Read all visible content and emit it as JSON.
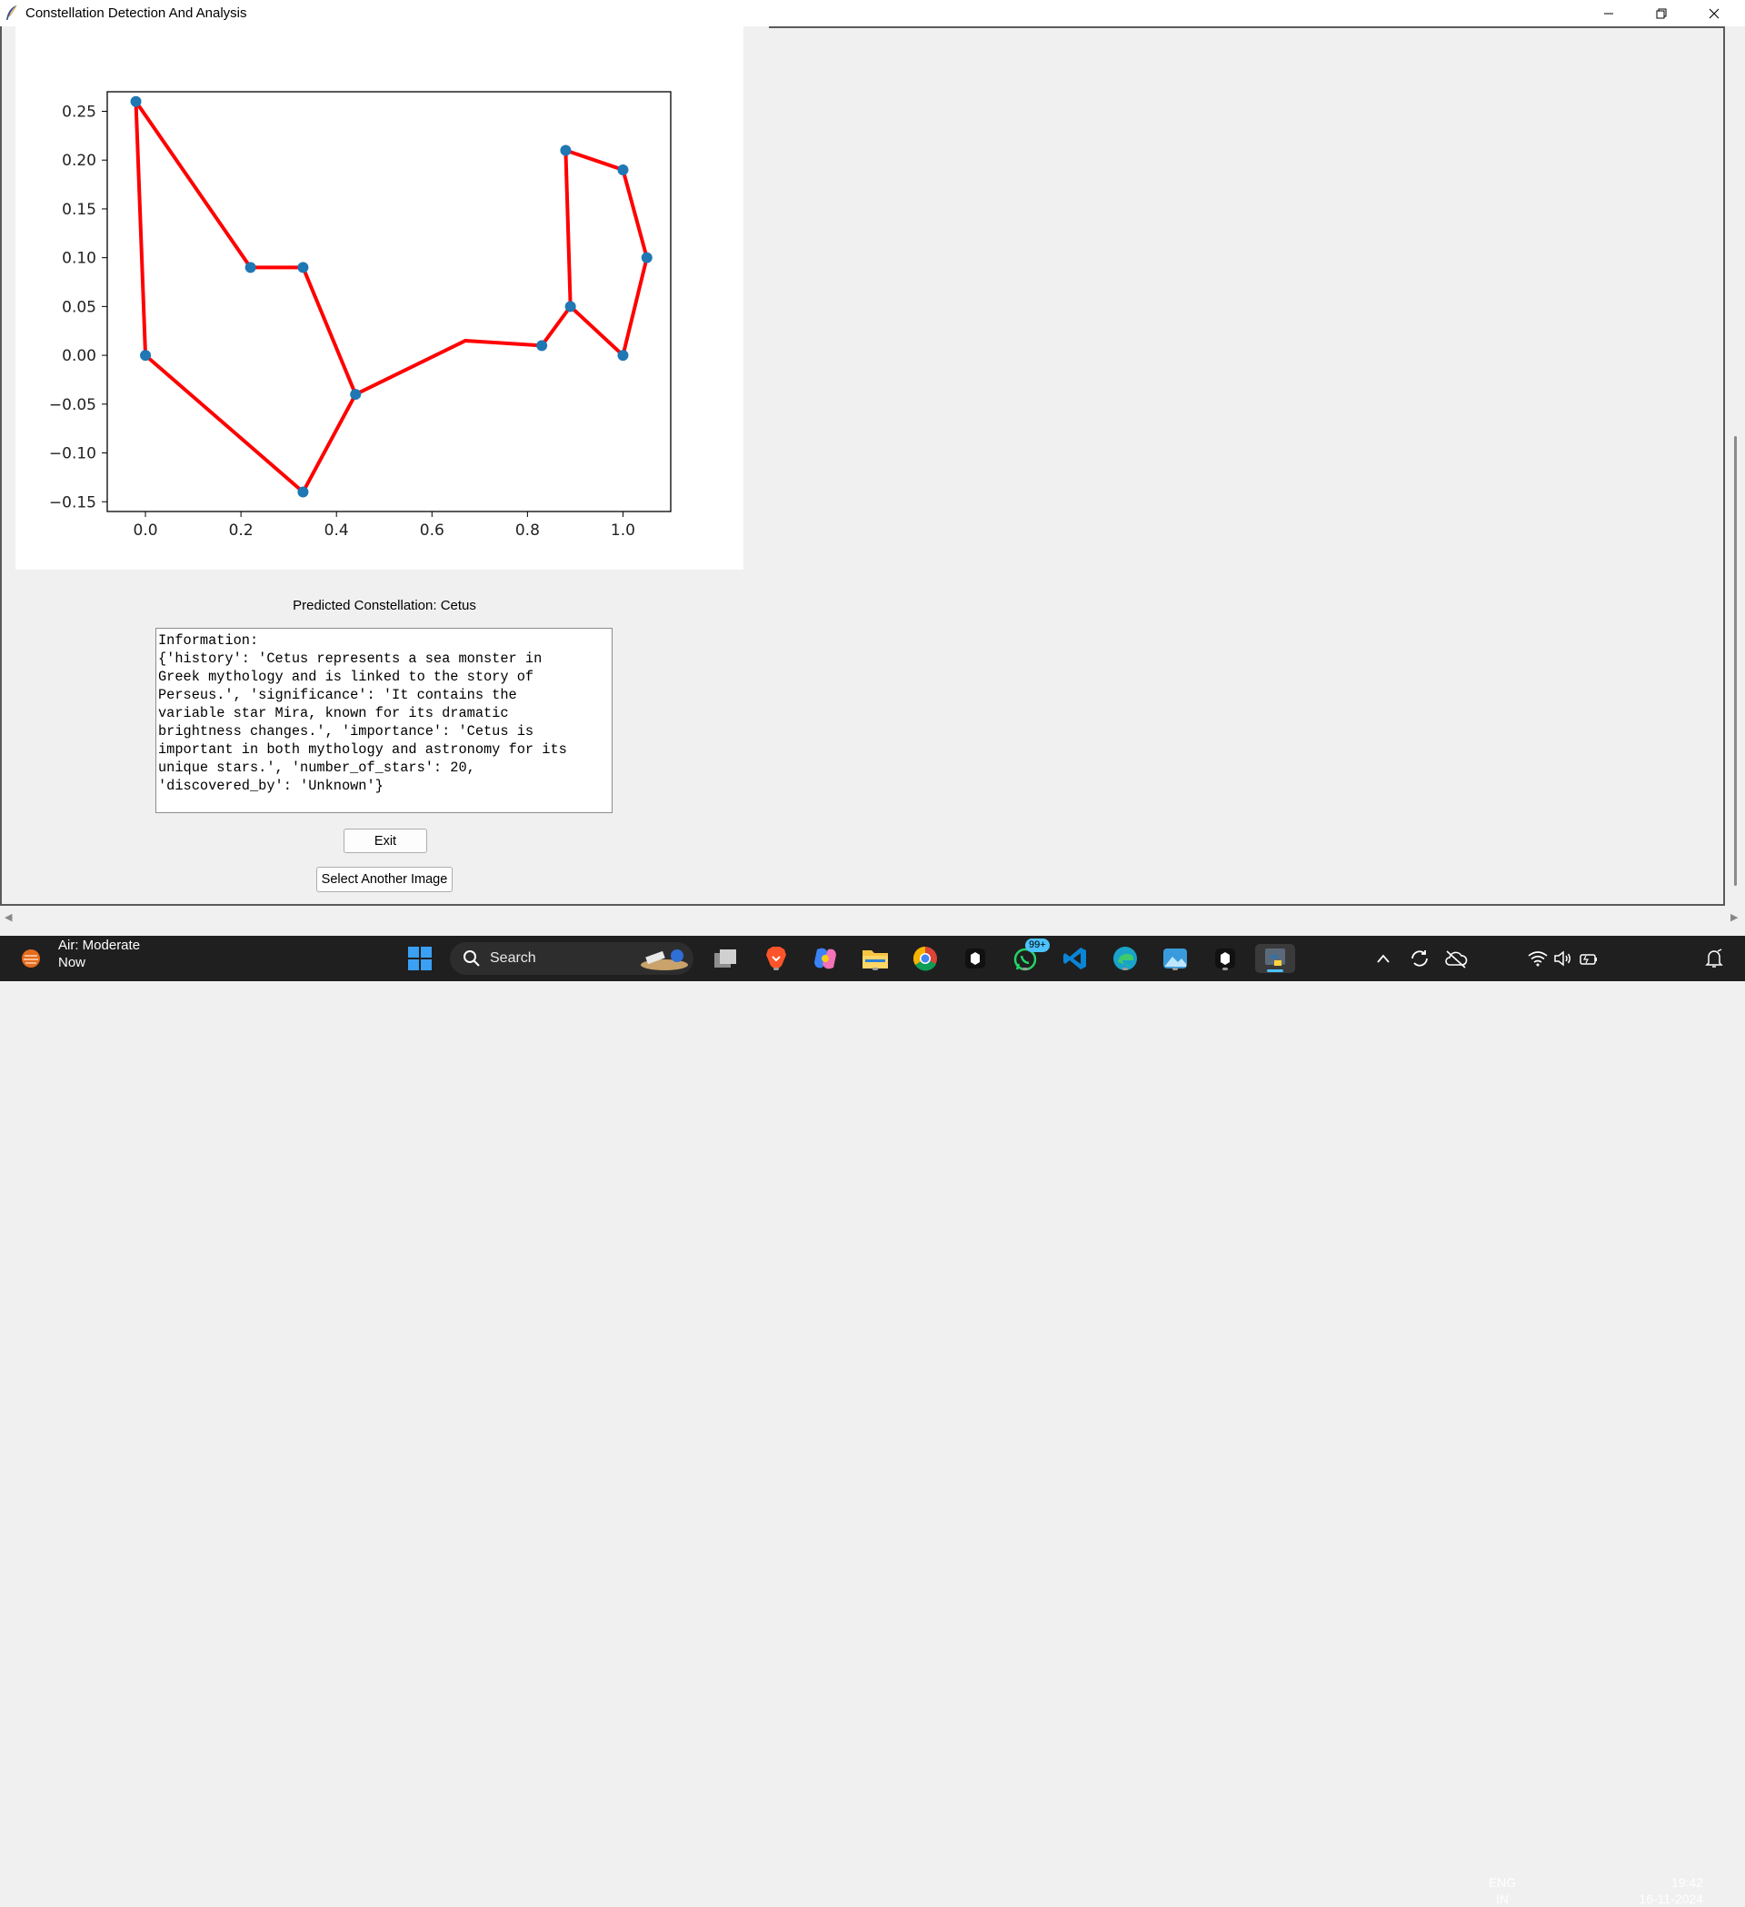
{
  "window": {
    "title": "Constellation Detection And Analysis"
  },
  "chart_data": {
    "type": "scatter",
    "title": "",
    "xlabel": "",
    "ylabel": "",
    "xlim": [
      -0.08,
      1.1
    ],
    "ylim": [
      -0.16,
      0.27
    ],
    "x_ticks": [
      "0.0",
      "0.2",
      "0.4",
      "0.6",
      "0.8",
      "1.0"
    ],
    "y_ticks": [
      "0.25",
      "0.20",
      "0.15",
      "0.10",
      "0.05",
      "0.00",
      "−0.05",
      "−0.10",
      "−0.15"
    ],
    "grid": false,
    "points": [
      {
        "x": -0.02,
        "y": 0.26
      },
      {
        "x": 0.0,
        "y": 0.0
      },
      {
        "x": 0.22,
        "y": 0.09
      },
      {
        "x": 0.33,
        "y": 0.09
      },
      {
        "x": 0.33,
        "y": -0.14
      },
      {
        "x": 0.44,
        "y": -0.04
      },
      {
        "x": 0.83,
        "y": 0.01
      },
      {
        "x": 0.88,
        "y": 0.21
      },
      {
        "x": 0.89,
        "y": 0.05
      },
      {
        "x": 1.0,
        "y": 0.19
      },
      {
        "x": 1.0,
        "y": 0.0
      },
      {
        "x": 1.05,
        "y": 0.1
      }
    ],
    "lines": [
      [
        [
          -0.02,
          0.26
        ],
        [
          0.0,
          0.0
        ]
      ],
      [
        [
          -0.02,
          0.26
        ],
        [
          0.22,
          0.09
        ]
      ],
      [
        [
          0.22,
          0.09
        ],
        [
          0.33,
          0.09
        ]
      ],
      [
        [
          0.33,
          0.09
        ],
        [
          0.44,
          -0.04
        ]
      ],
      [
        [
          0.0,
          0.0
        ],
        [
          0.33,
          -0.14
        ]
      ],
      [
        [
          0.33,
          -0.14
        ],
        [
          0.44,
          -0.04
        ]
      ],
      [
        [
          0.44,
          -0.04
        ],
        [
          0.67,
          0.015
        ]
      ],
      [
        [
          0.67,
          0.015
        ],
        [
          0.83,
          0.01
        ]
      ],
      [
        [
          0.83,
          0.01
        ],
        [
          0.89,
          0.05
        ]
      ],
      [
        [
          0.89,
          0.05
        ],
        [
          0.88,
          0.21
        ]
      ],
      [
        [
          0.88,
          0.21
        ],
        [
          1.0,
          0.19
        ]
      ],
      [
        [
          1.0,
          0.19
        ],
        [
          1.05,
          0.1
        ]
      ],
      [
        [
          1.05,
          0.1
        ],
        [
          1.0,
          0.0
        ]
      ],
      [
        [
          1.0,
          0.0
        ],
        [
          0.89,
          0.05
        ]
      ]
    ],
    "colors": {
      "point": "#1f77b4",
      "line": "#ff0000"
    }
  },
  "main": {
    "prediction_label": "Predicted Constellation: Cetus",
    "info_text": "Information:\n{'history': 'Cetus represents a sea monster in\nGreek mythology and is linked to the story of\nPerseus.', 'significance': 'It contains the\nvariable star Mira, known for its dramatic\nbrightness changes.', 'importance': 'Cetus is\nimportant in both mythology and astronomy for its\nunique stars.', 'number_of_stars': 20,\n'discovered_by': 'Unknown'}",
    "exit_label": "Exit",
    "select_label": "Select Another Image"
  },
  "taskbar": {
    "weather_title": "Air: Moderate",
    "weather_sub": "Now",
    "search_label": "Search",
    "badge": "99+",
    "lang_top": "ENG",
    "lang_bottom": "IN",
    "time": "19:42",
    "date": "16-11-2024"
  }
}
